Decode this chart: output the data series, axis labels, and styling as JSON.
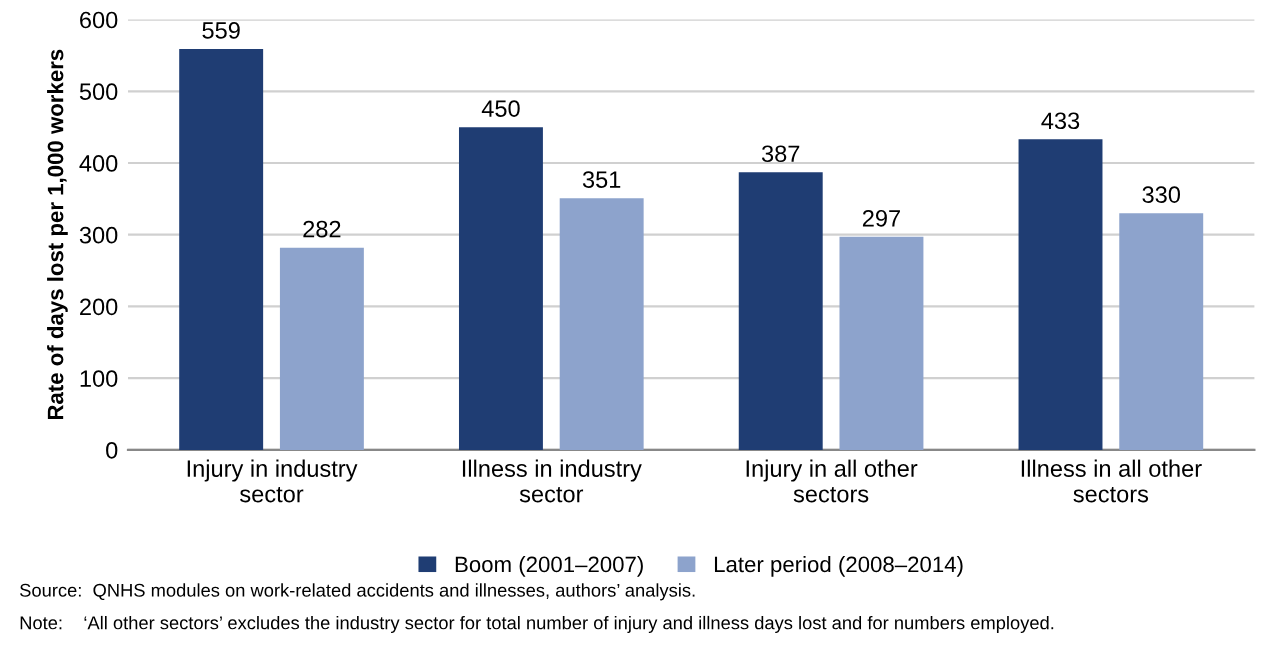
{
  "chart_data": {
    "type": "bar",
    "ylabel": "Rate of days lost per 1,000 workers",
    "categories": [
      "Injury in industry\nsector",
      "Illness in industry\nsector",
      "Injury in all other\nsectors",
      "Illness in all other\nsectors"
    ],
    "series": [
      {
        "name": "Boom (2001–2007)",
        "color": "#1f3d73",
        "values": [
          559,
          450,
          387,
          433
        ]
      },
      {
        "name": "Later period (2008–2014)",
        "color": "#8da3cc",
        "values": [
          282,
          351,
          297,
          330
        ]
      }
    ],
    "ylim": [
      0,
      600
    ],
    "yticks": [
      0,
      100,
      200,
      300,
      400,
      500,
      600
    ],
    "grid": "y",
    "legend": "bottom",
    "data_labels": true,
    "annotations": [
      "Source:  QNHS modules on work-related accidents and illnesses, authors’ analysis.",
      "Note:    ‘All other sectors’ excludes the industry sector for total number of injury and illness days lost and for numbers employed."
    ]
  }
}
